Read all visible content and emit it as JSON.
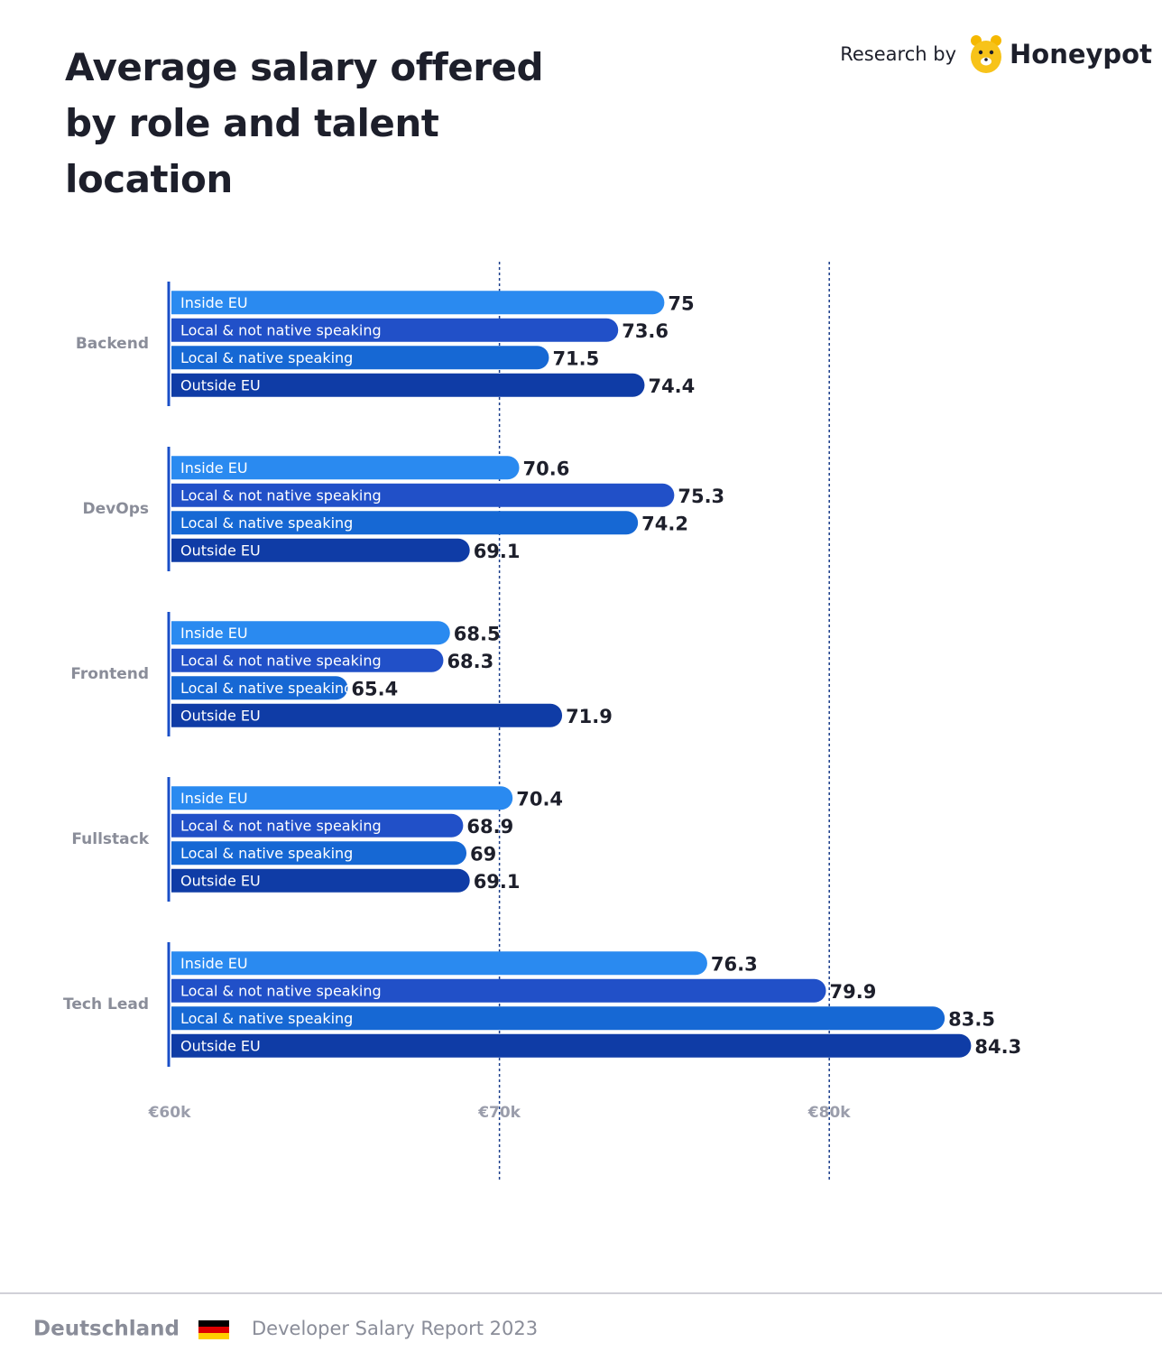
{
  "header": {
    "research_by": "Research by",
    "brand": "Honeypot"
  },
  "footer": {
    "country": "Deutschland",
    "report": "Developer Salary Report 2023"
  },
  "chart_data": {
    "type": "bar",
    "orientation": "horizontal",
    "title": "Average salary offered by role and talent location",
    "categories": [
      "Backend",
      "DevOps",
      "Frontend",
      "Fullstack",
      "Tech Lead"
    ],
    "series": [
      {
        "name": "Inside EU",
        "color": "#2a8af0",
        "values": [
          75,
          70.6,
          68.5,
          70.4,
          76.3
        ]
      },
      {
        "name": "Local & not native speaking",
        "color": "#2150c8",
        "values": [
          73.6,
          75.3,
          68.3,
          68.9,
          79.9
        ]
      },
      {
        "name": "Local & native speaking",
        "color": "#1668d4",
        "values": [
          71.5,
          74.2,
          65.4,
          69,
          83.5
        ]
      },
      {
        "name": "Outside EU",
        "color": "#0f3ca6",
        "values": [
          74.4,
          69.1,
          71.9,
          69.1,
          84.3
        ]
      }
    ],
    "xlim": [
      60,
      85
    ],
    "xticks": [
      {
        "value": 60,
        "label": "€60k"
      },
      {
        "value": 70,
        "label": "€70k"
      },
      {
        "value": 80,
        "label": "€80k"
      }
    ],
    "grid": true
  }
}
